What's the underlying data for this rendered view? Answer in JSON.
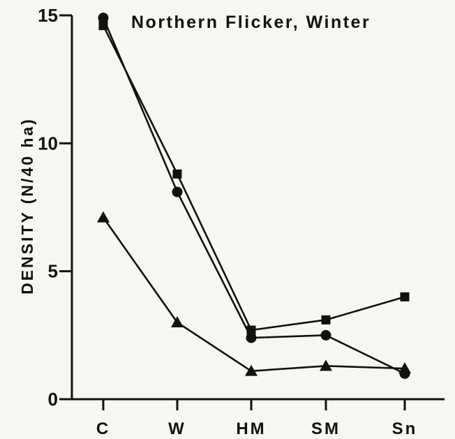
{
  "chart_data": {
    "type": "line",
    "title": "Northern Flicker, Winter",
    "xlabel": "",
    "ylabel": "DENSITY (N/40 ha)",
    "categories": [
      "C",
      "W",
      "HM",
      "SM",
      "Sn"
    ],
    "ylim": [
      0,
      15
    ],
    "yticks": [
      "0",
      "5",
      "10",
      "15"
    ],
    "grid": false,
    "legend": "none",
    "series": [
      {
        "marker": "circle",
        "color": "#111111",
        "values": [
          14.9,
          8.1,
          2.4,
          2.5,
          1.0
        ]
      },
      {
        "marker": "square",
        "color": "#111111",
        "values": [
          14.6,
          8.8,
          2.7,
          3.1,
          4.0
        ]
      },
      {
        "marker": "triangle",
        "color": "#111111",
        "values": [
          7.1,
          3.0,
          1.1,
          1.3,
          1.2
        ]
      }
    ]
  }
}
